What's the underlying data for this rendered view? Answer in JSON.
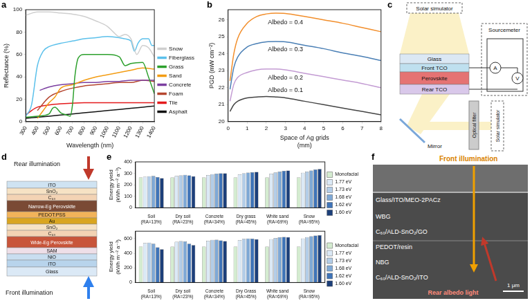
{
  "chart_data": [
    {
      "panel": "a",
      "type": "line",
      "xlabel": "Wavelength (nm)",
      "ylabel": "Reflectance (%)",
      "xlim": [
        300,
        1400
      ],
      "xticks": [
        300,
        400,
        500,
        600,
        700,
        800,
        900,
        1000,
        1100,
        1200,
        1300,
        1400
      ],
      "ylim": [
        0,
        100
      ],
      "yticks": [
        0,
        20,
        40,
        60,
        80,
        100
      ],
      "grid": false,
      "legend": "right",
      "series": [
        {
          "name": "Snow",
          "color": "#cfcfcf",
          "x": [
            300,
            400,
            500,
            600,
            700,
            800,
            900,
            1000,
            1050,
            1100,
            1150,
            1200,
            1250,
            1300,
            1350,
            1400
          ],
          "values": [
            95,
            98,
            98,
            97,
            96,
            94,
            90,
            85,
            80,
            76,
            78,
            74,
            60,
            68,
            66,
            58
          ]
        },
        {
          "name": "Fiberglass",
          "color": "#5bc0eb",
          "x": [
            300,
            350,
            400,
            450,
            500,
            600,
            700,
            800,
            900,
            1000,
            1100,
            1150,
            1200,
            1230,
            1260,
            1300,
            1350,
            1380,
            1400
          ],
          "values": [
            5,
            15,
            50,
            63,
            67,
            70,
            72,
            74,
            75,
            76,
            75,
            74,
            72,
            63,
            70,
            74,
            74,
            68,
            68
          ]
        },
        {
          "name": "Grass",
          "color": "#2ca02c",
          "x": [
            300,
            400,
            500,
            530,
            550,
            600,
            650,
            680,
            700,
            720,
            750,
            800,
            900,
            1000,
            1100,
            1150,
            1200,
            1300,
            1350,
            1400
          ],
          "values": [
            4,
            5,
            7,
            12,
            13,
            8,
            6,
            5,
            15,
            40,
            57,
            60,
            60,
            60,
            58,
            50,
            52,
            53,
            40,
            25
          ]
        },
        {
          "name": "Sand",
          "color": "#f39c12",
          "x": [
            400,
            450,
            500,
            550,
            600,
            700,
            800,
            900,
            1000,
            1100,
            1200,
            1300,
            1400
          ],
          "values": [
            3,
            10,
            17,
            22,
            30,
            33,
            37,
            40,
            42,
            44,
            46,
            48,
            47
          ]
        },
        {
          "name": "Concrete",
          "color": "#7b3fa0",
          "x": [
            420,
            500,
            600,
            700,
            800,
            900,
            1000,
            1100,
            1200,
            1300,
            1400
          ],
          "values": [
            28,
            31,
            33,
            34,
            35,
            35,
            36,
            36,
            37,
            37,
            37
          ]
        },
        {
          "name": "Foam",
          "color": "#b5462f",
          "x": [
            400,
            500,
            600,
            700,
            800,
            900,
            1000,
            1100,
            1200,
            1300,
            1400
          ],
          "values": [
            10,
            22,
            27,
            30,
            32,
            33,
            34,
            35,
            35,
            37,
            36
          ]
        },
        {
          "name": "Tile",
          "color": "#e41a1c",
          "x": [
            300,
            350,
            400,
            500,
            600,
            800,
            1000,
            1200,
            1400
          ],
          "values": [
            6,
            10,
            13,
            15,
            16,
            17,
            17,
            17,
            17
          ]
        },
        {
          "name": "Asphalt",
          "color": "#111111",
          "x": [
            300,
            400,
            500,
            600,
            700,
            800,
            900,
            1000,
            1100,
            1200,
            1300,
            1400
          ],
          "values": [
            3,
            4,
            5,
            6,
            7,
            8,
            9,
            10,
            11,
            12,
            13,
            14
          ]
        }
      ]
    },
    {
      "panel": "b",
      "type": "line",
      "xlabel": "Space of Ag grids (mm)",
      "ylabel": "PGD (mW cm⁻²)",
      "x": [
        0.1,
        0.3,
        0.5,
        1,
        1.5,
        2,
        2.5,
        3,
        4,
        5,
        6,
        7,
        8
      ],
      "xlim": [
        0,
        8
      ],
      "xticks": [
        0,
        1,
        2,
        3,
        4,
        5,
        6,
        7,
        8
      ],
      "ylim": [
        20,
        26.6
      ],
      "yticks": [
        20,
        21,
        22,
        23,
        24,
        25,
        26
      ],
      "grid": false,
      "series": [
        {
          "name": "Albedo = 0.4",
          "color": "#f28e2b",
          "values": [
            22.4,
            24.0,
            24.9,
            25.8,
            26.2,
            26.35,
            26.4,
            26.38,
            26.2,
            26.0,
            25.8,
            25.55,
            25.3
          ]
        },
        {
          "name": "Albedo = 0.3",
          "color": "#4a7fb5",
          "values": [
            21.9,
            23.2,
            23.8,
            24.4,
            24.6,
            24.7,
            24.72,
            24.7,
            24.5,
            24.3,
            24.05,
            23.85,
            23.6
          ]
        },
        {
          "name": "Albedo = 0.2",
          "color": "#c39bd3",
          "values": [
            21.2,
            22.2,
            22.6,
            22.9,
            23.05,
            23.1,
            23.1,
            23.05,
            22.85,
            22.65,
            22.45,
            22.25,
            22.0
          ]
        },
        {
          "name": "Albedo = 0.1",
          "color": "#444444",
          "values": [
            20.6,
            21.0,
            21.2,
            21.4,
            21.45,
            21.48,
            21.45,
            21.4,
            21.2,
            21.0,
            20.8,
            20.6,
            20.4
          ]
        }
      ],
      "annotations": [
        {
          "text": "Albedo = 0.4",
          "x": 3,
          "y": 25.85
        },
        {
          "text": "Albedo = 0.3",
          "x": 3,
          "y": 24.25
        },
        {
          "text": "Albedo = 0.2",
          "x": 3,
          "y": 22.6
        },
        {
          "text": "Albedo = 0.1",
          "x": 3,
          "y": 21.85
        }
      ]
    },
    {
      "panel": "e",
      "type": "bar",
      "ylabel": "Energy yield (kWh m⁻² a⁻¹)",
      "categories": [
        "Soil (RA=13%)",
        "Dry soil (RA=23%)",
        "Concrete (RA=34%)",
        "Dry grass (RA=45%)",
        "White sand (RA=69%)",
        "Snow (RA=95%)"
      ],
      "ylim": [
        0,
        400
      ],
      "yticks": [
        0,
        100,
        200,
        300,
        400
      ],
      "grid": false,
      "legend": "right",
      "series": [
        {
          "name": "Monofacial",
          "color": "#d4ecd0",
          "values": [
            265,
            265,
            265,
            265,
            265,
            265
          ]
        },
        {
          "name": "1.77 eV",
          "color": "#dbe9f6",
          "values": [
            270,
            278,
            285,
            292,
            298,
            305
          ]
        },
        {
          "name": "1.73 eV",
          "color": "#b3cde8",
          "values": [
            275,
            283,
            293,
            300,
            308,
            316
          ]
        },
        {
          "name": "1.68 eV",
          "color": "#7fa9d6",
          "values": [
            278,
            287,
            298,
            306,
            316,
            325
          ]
        },
        {
          "name": "1.62 eV",
          "color": "#3f74b8",
          "values": [
            268,
            282,
            300,
            310,
            322,
            333
          ]
        },
        {
          "name": "1.60 eV",
          "color": "#1c3f7a",
          "values": [
            258,
            275,
            300,
            312,
            325,
            338
          ]
        }
      ]
    },
    {
      "type": "bar",
      "ylabel": "Energy yield (kWh m⁻² a⁻¹)",
      "categories": [
        "Soil (RA=13%)",
        "Dry soil (RA=23%)",
        "Concrete (RA=34%)",
        "Dry Grass (RA=45%)",
        "White sand (RA=69%)",
        "Snow (RA=95%)"
      ],
      "ylim": [
        0,
        700
      ],
      "yticks": [
        0,
        200,
        400,
        600
      ],
      "grid": false,
      "legend": "right",
      "series": [
        {
          "name": "Monofacial",
          "color": "#d4ecd0",
          "values": [
            490,
            490,
            490,
            490,
            490,
            490
          ]
        },
        {
          "name": "1.77 eV",
          "color": "#dbe9f6",
          "values": [
            540,
            555,
            570,
            580,
            590,
            600
          ]
        },
        {
          "name": "1.73 eV",
          "color": "#b3cde8",
          "values": [
            545,
            565,
            582,
            595,
            608,
            620
          ]
        },
        {
          "name": "1.68 eV",
          "color": "#7fa9d6",
          "values": [
            530,
            560,
            585,
            600,
            618,
            632
          ]
        },
        {
          "name": "1.62 eV",
          "color": "#3f74b8",
          "values": [
            480,
            530,
            575,
            598,
            622,
            640
          ]
        },
        {
          "name": "1.60 eV",
          "color": "#1c3f7a",
          "values": [
            455,
            510,
            565,
            592,
            620,
            645
          ]
        }
      ]
    }
  ],
  "diagrams": {
    "c": {
      "panel": "c",
      "top_source": "Solar simulator",
      "side_source": "Solar simulator",
      "instrument": "Sourcemeter",
      "layers": [
        "Glass",
        "Front TCO",
        "Perovskite",
        "Rear TCO"
      ],
      "meters": [
        "A",
        "V"
      ],
      "mirror": "Mirror",
      "filter": "Optical filter"
    },
    "d": {
      "panel": "d",
      "top_light": "Rear illumination",
      "bottom_light": "Front illumination",
      "layers": [
        {
          "label": "ITO",
          "color": "#cfe3f2"
        },
        {
          "label": "SnO₂",
          "color": "#f6e2c4"
        },
        {
          "label": "C₆₀",
          "color": "#f3d3b4"
        },
        {
          "label": "Narrow-Eg Perovskite",
          "color": "#7a4a35"
        },
        {
          "label": "PEDOT:PSS",
          "color": "#f2b35a"
        },
        {
          "label": "Au",
          "color": "#d9a520"
        },
        {
          "label": "SnO₂",
          "color": "#f6e2c4"
        },
        {
          "label": "C₆₀",
          "color": "#f3d3b4"
        },
        {
          "label": "Wide-Eg Perovskite",
          "color": "#c8553a"
        },
        {
          "label": "SAM",
          "color": "#eedfe8"
        },
        {
          "label": "NiO",
          "color": "#c9def0"
        },
        {
          "label": "ITO",
          "color": "#b8d4ec"
        },
        {
          "label": "Glass",
          "color": "#dbe9f6"
        }
      ]
    },
    "f": {
      "panel": "f",
      "front": "Front illumination",
      "rear": "Rear albedo light",
      "layers": [
        "Glass/ITO/MEO-2PACz",
        "WBG",
        "C₆₀/ALD-SnO₂/GO",
        "PEDOT/resin",
        "NBG",
        "C₆₀/ALD-SnO₂/ITO"
      ],
      "scale_bar": "1 μm"
    }
  }
}
